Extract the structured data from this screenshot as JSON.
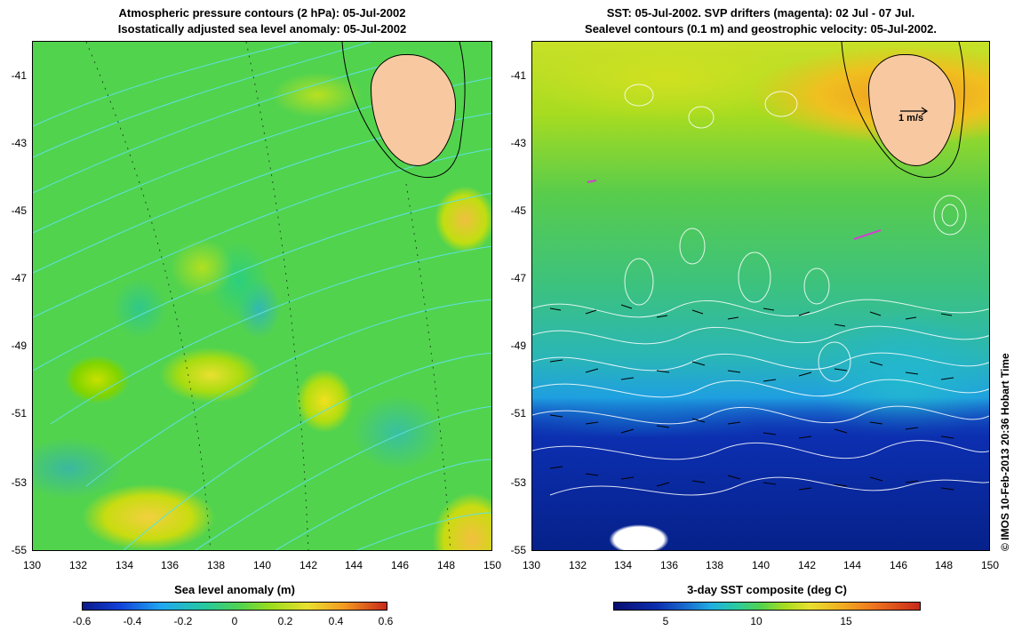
{
  "left_panel": {
    "title_line1": "Atmospheric pressure contours (2 hPa): 05-Jul-2002",
    "title_line2": "Isostatically adjusted sea level anomaly: 05-Jul-2002",
    "y_ticks": [
      "-41",
      "-43",
      "-45",
      "-47",
      "-49",
      "-51",
      "-53",
      "-55"
    ],
    "x_ticks": [
      "130",
      "132",
      "134",
      "136",
      "138",
      "140",
      "142",
      "144",
      "146",
      "148",
      "150"
    ],
    "colorbar_label": "Sea level anomaly (m)",
    "colorbar_ticks": [
      "-0.6",
      "-0.4",
      "-0.2",
      "0",
      "0.2",
      "0.4",
      "0.6"
    ]
  },
  "right_panel": {
    "title_line1": "SST: 05-Jul-2002. SVP drifters (magenta): 02 Jul - 07 Jul.",
    "title_line2": "Sealevel contours (0.1 m) and geostrophic velocity: 05-Jul-2002.",
    "y_ticks": [
      "-41",
      "-43",
      "-45",
      "-47",
      "-49",
      "-51",
      "-53",
      "-55"
    ],
    "x_ticks": [
      "130",
      "132",
      "134",
      "136",
      "138",
      "140",
      "142",
      "144",
      "146",
      "148",
      "150"
    ],
    "velocity_scale_label": "1 m/s",
    "colorbar_label": "3-day SST composite (deg C)",
    "colorbar_ticks": [
      "5",
      "10",
      "15"
    ]
  },
  "credit": "© IMOS 10-Feb-2013 20:36 Hobart Time",
  "colors": {
    "land": "#f8c8a0",
    "pressure_contours": "#5fe0e0",
    "sealevel_contours": "#ffffff",
    "drifters": "#d040d0"
  }
}
